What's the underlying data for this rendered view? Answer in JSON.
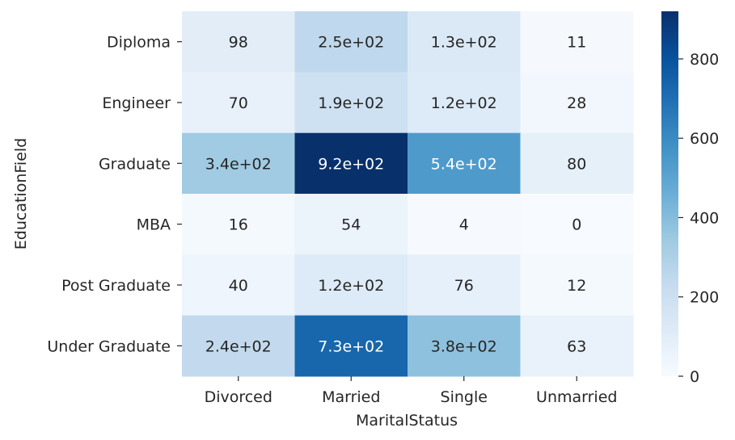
{
  "chart_data": {
    "type": "heatmap",
    "xlabel": "MaritalStatus",
    "ylabel": "EducationField",
    "x_categories": [
      "Divorced",
      "Married",
      "Single",
      "Unmarried"
    ],
    "y_categories": [
      "Diploma",
      "Engineer",
      "Graduate",
      "MBA",
      "Post Graduate",
      "Under Graduate"
    ],
    "values": [
      [
        98,
        250,
        130,
        11
      ],
      [
        70,
        190,
        120,
        28
      ],
      [
        340,
        920,
        540,
        80
      ],
      [
        16,
        54,
        4,
        0
      ],
      [
        40,
        120,
        76,
        12
      ],
      [
        240,
        730,
        380,
        63
      ]
    ],
    "annotations": [
      [
        "98",
        "2.5e+02",
        "1.3e+02",
        "11"
      ],
      [
        "70",
        "1.9e+02",
        "1.2e+02",
        "28"
      ],
      [
        "3.4e+02",
        "9.2e+02",
        "5.4e+02",
        "80"
      ],
      [
        "16",
        "54",
        "4",
        "0"
      ],
      [
        "40",
        "1.2e+02",
        "76",
        "12"
      ],
      [
        "2.4e+02",
        "7.3e+02",
        "3.8e+02",
        "63"
      ]
    ],
    "colorbar": {
      "colormap": "Blues",
      "vmin": 0,
      "vmax": 920,
      "ticks": [
        0,
        200,
        400,
        600,
        800
      ],
      "tick_labels": [
        "0",
        "200",
        "400",
        "600",
        "800"
      ]
    }
  }
}
